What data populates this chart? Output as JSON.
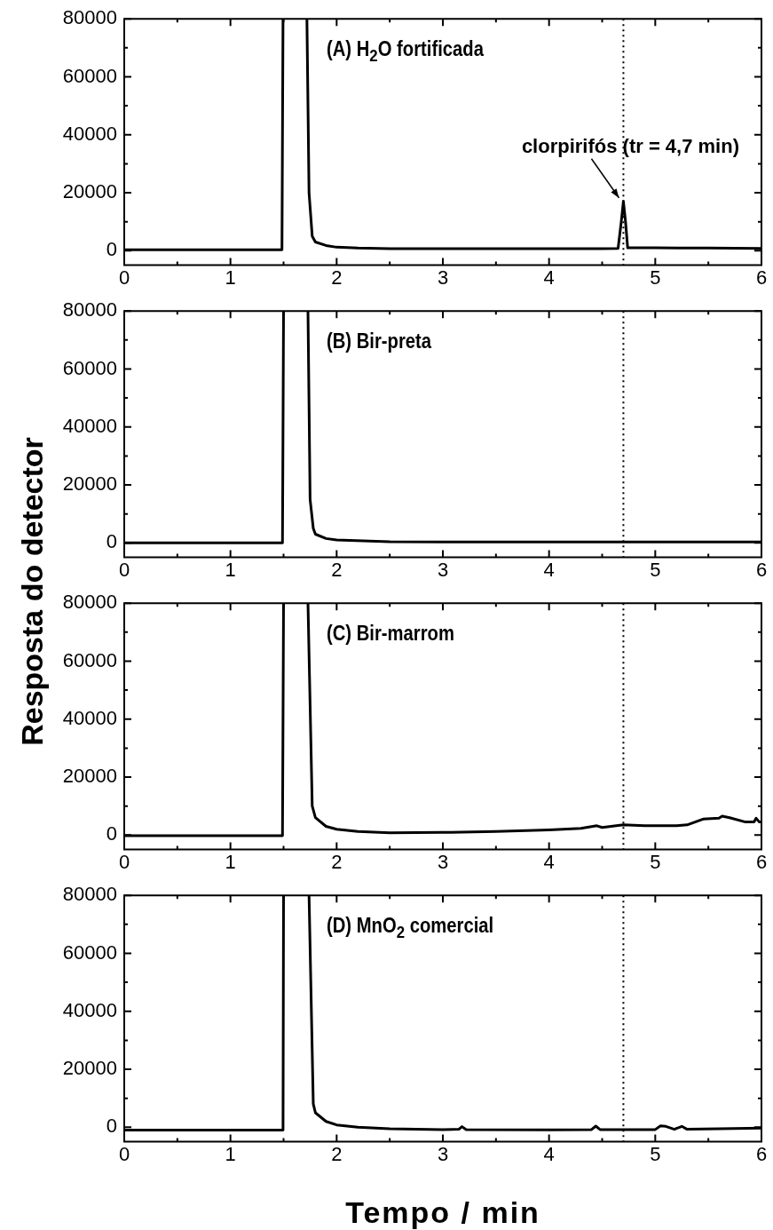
{
  "chart_data": [
    {
      "type": "line",
      "title": "(A) H$_{2}$O fortificada",
      "ylabel": "Resposta do detector",
      "color": "#000000",
      "marker": "none",
      "line_style": "solid",
      "grid": false,
      "x": [
        0,
        0.5,
        1,
        1.485,
        1.495,
        1.6,
        1.72,
        1.74,
        1.77,
        1.8,
        1.9,
        2.0,
        2.2,
        2.5,
        3,
        3.5,
        4,
        4.5,
        4.65,
        4.68,
        4.7,
        4.72,
        4.74,
        5,
        5.5,
        6
      ],
      "values": [
        300,
        300,
        300,
        300,
        80000,
        null,
        80000,
        20000,
        5000,
        3000,
        1800,
        1200,
        900,
        700,
        700,
        700,
        700,
        700,
        800,
        10000,
        17000,
        10000,
        1000,
        1000,
        900,
        800
      ],
      "xlim": [
        0,
        6
      ],
      "xticks": [
        0,
        {
          "value": 0.5,
          "label": null
        },
        1,
        {
          "value": 1.5,
          "label": null
        },
        2,
        {
          "value": 2.5,
          "label": null
        },
        3,
        {
          "value": 3.5,
          "label": null
        },
        4,
        {
          "value": 4.5,
          "label": null
        },
        5,
        {
          "value": 5.5,
          "label": null
        },
        6
      ],
      "ylim": [
        -5000,
        80000
      ],
      "yticks": [
        0,
        {
          "value": 10000,
          "label": null
        },
        20000,
        {
          "value": 30000,
          "label": null
        },
        40000,
        {
          "value": 50000,
          "label": null
        },
        60000,
        {
          "value": 70000,
          "label": null
        },
        80000
      ],
      "ref_lines": [
        {
          "axis": "x",
          "value": 4.7,
          "line_style": "dotted"
        }
      ],
      "annotations": [
        {
          "text": "clorpirifós (tr = 4,7 min)",
          "x": 4.7,
          "y": 17000
        }
      ]
    },
    {
      "type": "line",
      "title": "(B) Bir-preta",
      "color": "#000000",
      "marker": "none",
      "line_style": "solid",
      "grid": false,
      "x": [
        0,
        1,
        1.49,
        1.5,
        1.6,
        1.73,
        1.75,
        1.78,
        1.8,
        1.9,
        2,
        2.5,
        3,
        4,
        5,
        6
      ],
      "values": [
        0,
        0,
        0,
        80000,
        null,
        80000,
        15000,
        5000,
        3000,
        1500,
        1000,
        400,
        300,
        300,
        300,
        300
      ],
      "xlim": [
        0,
        6
      ],
      "xticks": [
        0,
        {
          "value": 0.5,
          "label": null
        },
        1,
        {
          "value": 1.5,
          "label": null
        },
        2,
        {
          "value": 2.5,
          "label": null
        },
        3,
        {
          "value": 3.5,
          "label": null
        },
        4,
        {
          "value": 4.5,
          "label": null
        },
        5,
        {
          "value": 5.5,
          "label": null
        },
        6
      ],
      "ylim": [
        -5000,
        80000
      ],
      "yticks": [
        0,
        {
          "value": 10000,
          "label": null
        },
        20000,
        {
          "value": 30000,
          "label": null
        },
        40000,
        {
          "value": 50000,
          "label": null
        },
        60000,
        {
          "value": 70000,
          "label": null
        },
        80000
      ],
      "ref_lines": [
        {
          "axis": "x",
          "value": 4.7,
          "line_style": "dotted"
        }
      ]
    },
    {
      "type": "line",
      "title": "(C) Bir-marrom",
      "color": "#000000",
      "marker": "none",
      "line_style": "solid",
      "grid": false,
      "x": [
        0,
        1,
        1.49,
        1.5,
        1.6,
        1.73,
        1.77,
        1.8,
        1.9,
        2,
        2.2,
        2.5,
        3,
        3.5,
        4,
        4.3,
        4.45,
        4.5,
        4.7,
        4.9,
        5.2,
        5.3,
        5.45,
        5.6,
        5.63,
        5.7,
        5.85,
        5.93,
        5.95,
        5.98,
        6
      ],
      "values": [
        -200,
        -200,
        -200,
        80000,
        null,
        80000,
        10000,
        6000,
        3000,
        2000,
        1200,
        800,
        900,
        1200,
        1800,
        2300,
        3200,
        2600,
        3500,
        3200,
        3200,
        3500,
        5500,
        5800,
        6500,
        6000,
        4500,
        4500,
        5800,
        4500,
        4500
      ],
      "xlim": [
        0,
        6
      ],
      "xticks": [
        0,
        {
          "value": 0.5,
          "label": null
        },
        1,
        {
          "value": 1.5,
          "label": null
        },
        2,
        {
          "value": 2.5,
          "label": null
        },
        3,
        {
          "value": 3.5,
          "label": null
        },
        4,
        {
          "value": 4.5,
          "label": null
        },
        5,
        {
          "value": 5.5,
          "label": null
        },
        6
      ],
      "ylim": [
        -5000,
        80000
      ],
      "yticks": [
        0,
        {
          "value": 10000,
          "label": null
        },
        20000,
        {
          "value": 30000,
          "label": null
        },
        40000,
        {
          "value": 50000,
          "label": null
        },
        60000,
        {
          "value": 70000,
          "label": null
        },
        80000
      ],
      "ref_lines": [
        {
          "axis": "x",
          "value": 4.7,
          "line_style": "dotted"
        }
      ]
    },
    {
      "type": "line",
      "title": "(D) MnO$_{2}$ comercial",
      "xlabel": "Tempo / min",
      "color": "#000000",
      "marker": "none",
      "line_style": "solid",
      "grid": false,
      "x": [
        0,
        1,
        1.495,
        1.5,
        1.6,
        1.74,
        1.78,
        1.8,
        1.9,
        2,
        2.2,
        2.5,
        3,
        3.15,
        3.18,
        3.22,
        4,
        4.4,
        4.44,
        4.48,
        5,
        5.05,
        5.1,
        5.18,
        5.25,
        5.3,
        5.6,
        6
      ],
      "values": [
        -1000,
        -1000,
        -1000,
        80000,
        null,
        80000,
        8000,
        5000,
        2000,
        800,
        0,
        -500,
        -800,
        -700,
        200,
        -800,
        -900,
        -800,
        400,
        -800,
        -800,
        500,
        300,
        -700,
        300,
        -700,
        -500,
        -300
      ],
      "xlim": [
        0,
        6
      ],
      "xticks": [
        0,
        {
          "value": 0.5,
          "label": null
        },
        1,
        {
          "value": 1.5,
          "label": null
        },
        2,
        {
          "value": 2.5,
          "label": null
        },
        3,
        {
          "value": 3.5,
          "label": null
        },
        4,
        {
          "value": 4.5,
          "label": null
        },
        5,
        {
          "value": 5.5,
          "label": null
        },
        6
      ],
      "ylim": [
        -5000,
        80000
      ],
      "yticks": [
        0,
        {
          "value": 10000,
          "label": null
        },
        20000,
        {
          "value": 30000,
          "label": null
        },
        40000,
        {
          "value": 50000,
          "label": null
        },
        60000,
        {
          "value": 70000,
          "label": null
        },
        80000
      ],
      "ref_lines": [
        {
          "axis": "x",
          "value": 4.7,
          "line_style": "dotted"
        }
      ]
    }
  ]
}
